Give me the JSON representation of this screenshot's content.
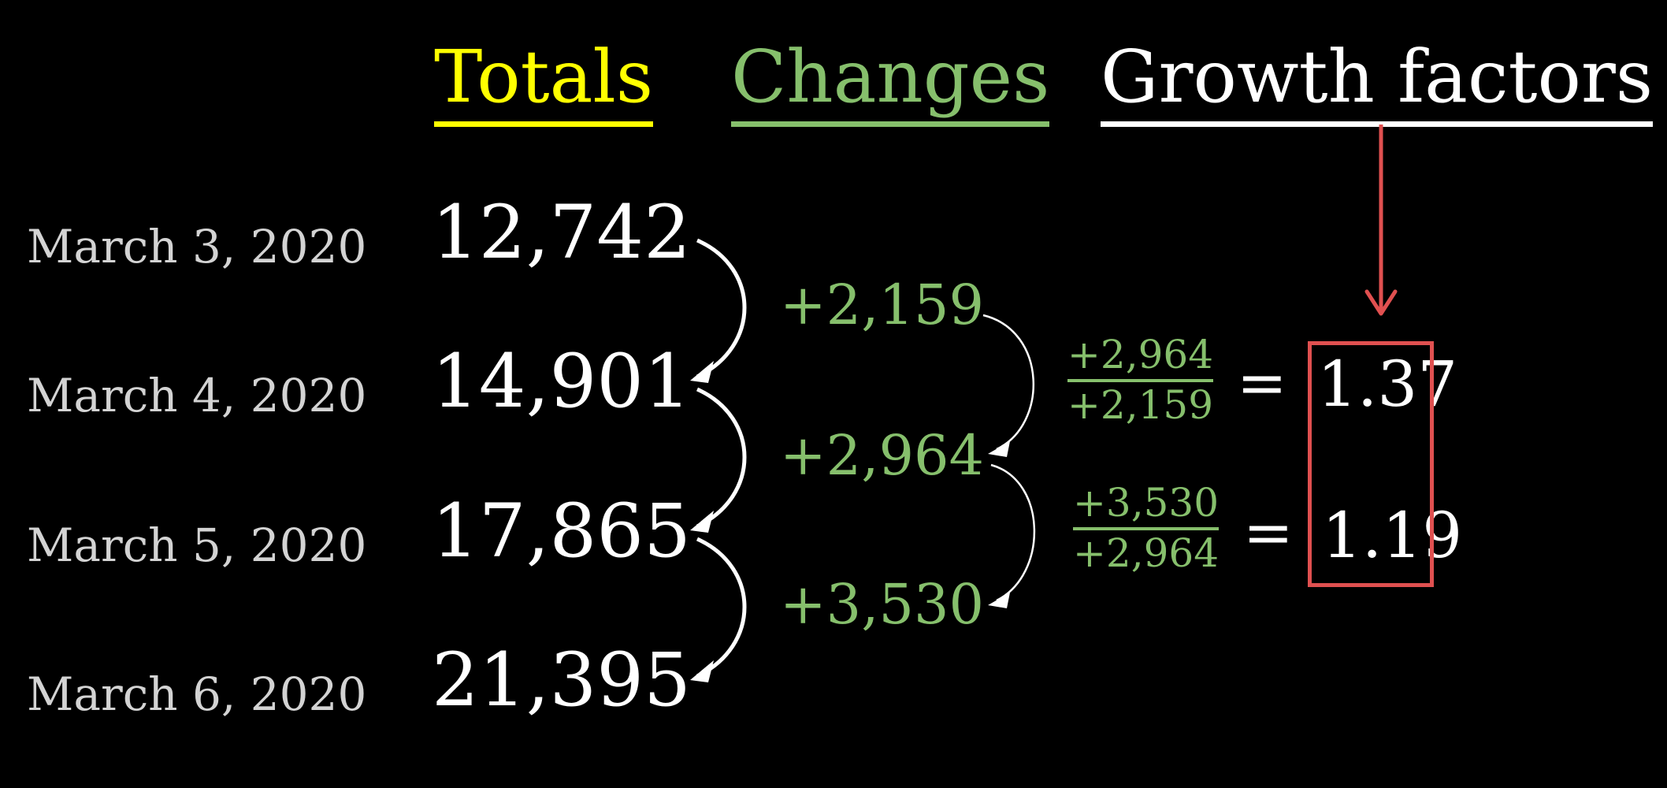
{
  "headers": {
    "totals": "Totals",
    "changes": "Changes",
    "growth": "Growth factors"
  },
  "rows": [
    {
      "date": "March 3, 2020",
      "total": "12,742"
    },
    {
      "date": "March 4, 2020",
      "total": "14,901"
    },
    {
      "date": "March 5, 2020",
      "total": "17,865"
    },
    {
      "date": "March 6, 2020",
      "total": "21,395"
    }
  ],
  "changes": [
    "+2,159",
    "+2,964",
    "+3,530"
  ],
  "growth_factors": [
    {
      "numerator": "+2,964",
      "denominator": "+2,159",
      "equals": "=",
      "value": "1.37"
    },
    {
      "numerator": "+3,530",
      "denominator": "+2,964",
      "equals": "=",
      "value": "1.19"
    }
  ],
  "colors": {
    "background": "#000000",
    "totals": "#ffff00",
    "changes": "#86bf6c",
    "growth": "#ffffff",
    "highlight": "#e05050",
    "dates": "#d3d3d3"
  }
}
